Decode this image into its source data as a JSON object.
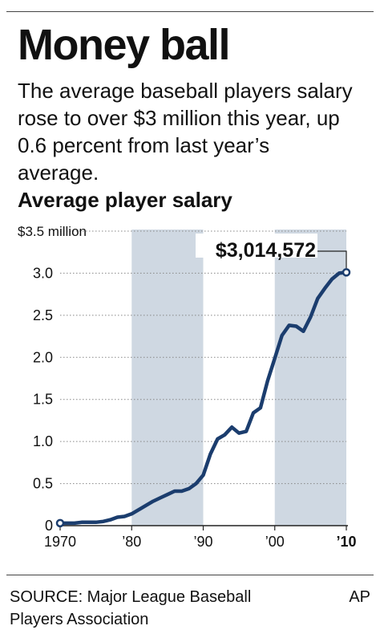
{
  "header": {
    "title": "Money ball",
    "subtitle": "The average baseball players salary rose to over $3 million this year, up 0.6 percent from last year’s average."
  },
  "chart_data": {
    "type": "line",
    "title": "Average player salary",
    "ylabel": "",
    "xlabel": "",
    "ylim": [
      0,
      3.5
    ],
    "xlim": [
      1970,
      2010
    ],
    "y_ticks": [
      {
        "value": 3.5,
        "label": "$3.5 million"
      },
      {
        "value": 3.0,
        "label": "3.0"
      },
      {
        "value": 2.5,
        "label": "2.5"
      },
      {
        "value": 2.0,
        "label": "2.0"
      },
      {
        "value": 1.5,
        "label": "1.5"
      },
      {
        "value": 1.0,
        "label": "1.0"
      },
      {
        "value": 0.5,
        "label": "0.5"
      },
      {
        "value": 0,
        "label": "0"
      }
    ],
    "x_ticks": [
      {
        "value": 1970,
        "label": "1970",
        "bold": false
      },
      {
        "value": 1980,
        "label": "’80",
        "bold": false
      },
      {
        "value": 1990,
        "label": "’90",
        "bold": false
      },
      {
        "value": 2000,
        "label": "’00",
        "bold": false
      },
      {
        "value": 2010,
        "label": "’10",
        "bold": true
      }
    ],
    "shaded_ranges": [
      [
        1980,
        1990
      ],
      [
        2000,
        2010
      ]
    ],
    "grid": true,
    "series": [
      {
        "color": "#1b3d6e",
        "x": [
          1970,
          1971,
          1972,
          1973,
          1974,
          1975,
          1976,
          1977,
          1978,
          1979,
          1980,
          1981,
          1982,
          1983,
          1984,
          1985,
          1986,
          1987,
          1988,
          1989,
          1990,
          1991,
          1992,
          1993,
          1994,
          1995,
          1996,
          1997,
          1998,
          1999,
          2000,
          2001,
          2002,
          2003,
          2004,
          2005,
          2006,
          2007,
          2008,
          2009,
          2010
        ],
        "y": [
          0.03,
          0.03,
          0.03,
          0.04,
          0.04,
          0.04,
          0.05,
          0.07,
          0.1,
          0.11,
          0.14,
          0.19,
          0.24,
          0.29,
          0.33,
          0.37,
          0.41,
          0.41,
          0.44,
          0.5,
          0.6,
          0.85,
          1.03,
          1.08,
          1.17,
          1.1,
          1.12,
          1.34,
          1.4,
          1.72,
          1.99,
          2.26,
          2.38,
          2.37,
          2.31,
          2.48,
          2.7,
          2.82,
          2.93,
          3.0,
          3.01
        ]
      }
    ],
    "annotations": [
      {
        "text": "$3,014,572",
        "x": 2010,
        "y": 3.01
      }
    ]
  },
  "footer": {
    "source": "SOURCE: Major League Baseball Players Association",
    "credit": "AP"
  },
  "colors": {
    "shade": "#cfd8e2",
    "line": "#1b3d6e",
    "grid": "#888888",
    "text": "#111111"
  }
}
